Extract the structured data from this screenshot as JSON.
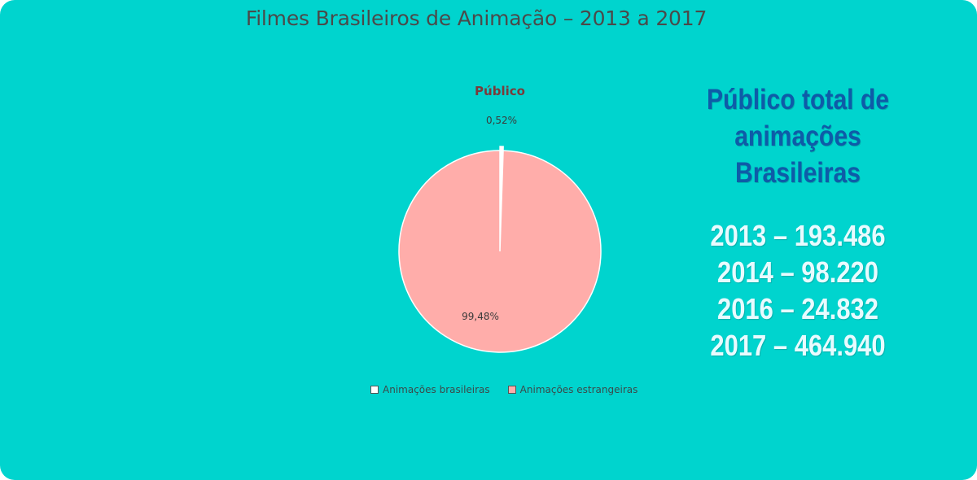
{
  "title": "Filmes Brasileiros de Animação – 2013 a 2017",
  "chart_data": {
    "type": "pie",
    "title": "Público",
    "categories": [
      "Animações brasileiras",
      "Animações estrangeiras"
    ],
    "values": [
      0.52,
      99.48
    ],
    "value_labels": [
      "0,52%",
      "99,48%"
    ],
    "colors": [
      "#FFFFFF",
      "#FFADAA"
    ],
    "legend_position": "bottom"
  },
  "side_panel": {
    "heading_lines": [
      "Público total de",
      "animações",
      "Brasileiras"
    ],
    "year_totals": [
      "2013 – 193.486",
      "2014 – 98.220",
      "2016 – 24.832",
      "2017 – 464.940"
    ],
    "colors": {
      "heading": "#0E5BA8",
      "values": "#E8FBFF"
    }
  },
  "background_color": "#00D4CE"
}
